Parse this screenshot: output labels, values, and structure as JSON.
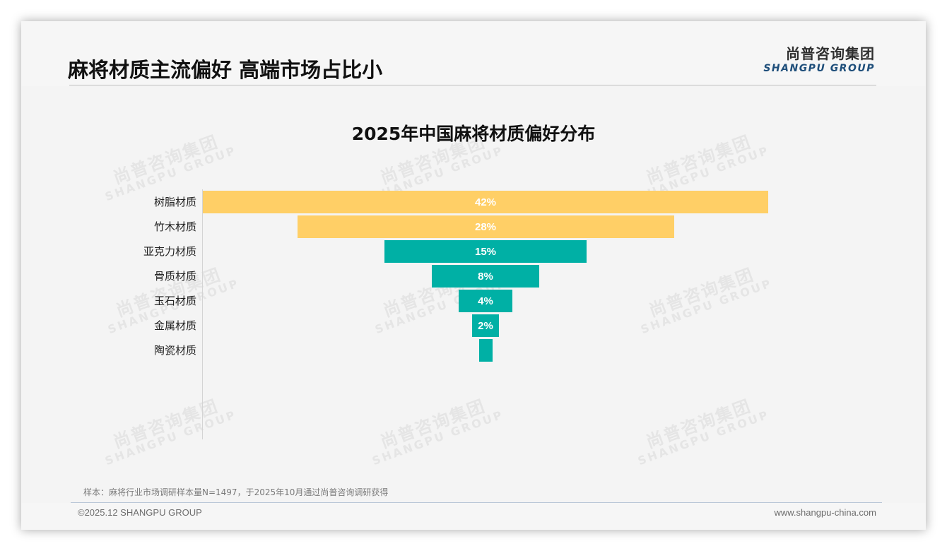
{
  "header": {
    "title": "麻将材质主流偏好 高端市场占比小",
    "logo_cn": "尚普咨询集团",
    "logo_en": "SHANGPU GROUP"
  },
  "watermark": {
    "cn": "尚普咨询集团",
    "en": "SHANGPU GROUP"
  },
  "colors": {
    "top_tier": "#FFCF66",
    "lower_tier": "#00B0A5",
    "logo_en": "#1E4E7A"
  },
  "chart_data": {
    "type": "bar",
    "subtype": "funnel",
    "title": "2025年中国麻将材质偏好分布",
    "categories": [
      "树脂材质",
      "竹木材质",
      "亚克力材质",
      "骨质材质",
      "玉石材质",
      "金属材质",
      "陶瓷材质"
    ],
    "values": [
      42,
      28,
      15,
      8,
      4,
      2,
      1
    ],
    "labels": [
      "42%",
      "28%",
      "15%",
      "8%",
      "4%",
      "2%",
      ""
    ],
    "bar_colors": [
      "#FFCF66",
      "#FFCF66",
      "#00B0A5",
      "#00B0A5",
      "#00B0A5",
      "#00B0A5",
      "#00B0A5"
    ],
    "unit": "%",
    "xlabel": "",
    "ylabel": "",
    "grid": false,
    "legend": false,
    "orientation": "horizontal-centered"
  },
  "footer": {
    "sample_note": "样本：麻将行业市场调研样本量N=1497，于2025年10月通过尚普咨询调研获得",
    "copyright": "©2025.12 SHANGPU GROUP",
    "website": "www.shangpu-china.com"
  }
}
